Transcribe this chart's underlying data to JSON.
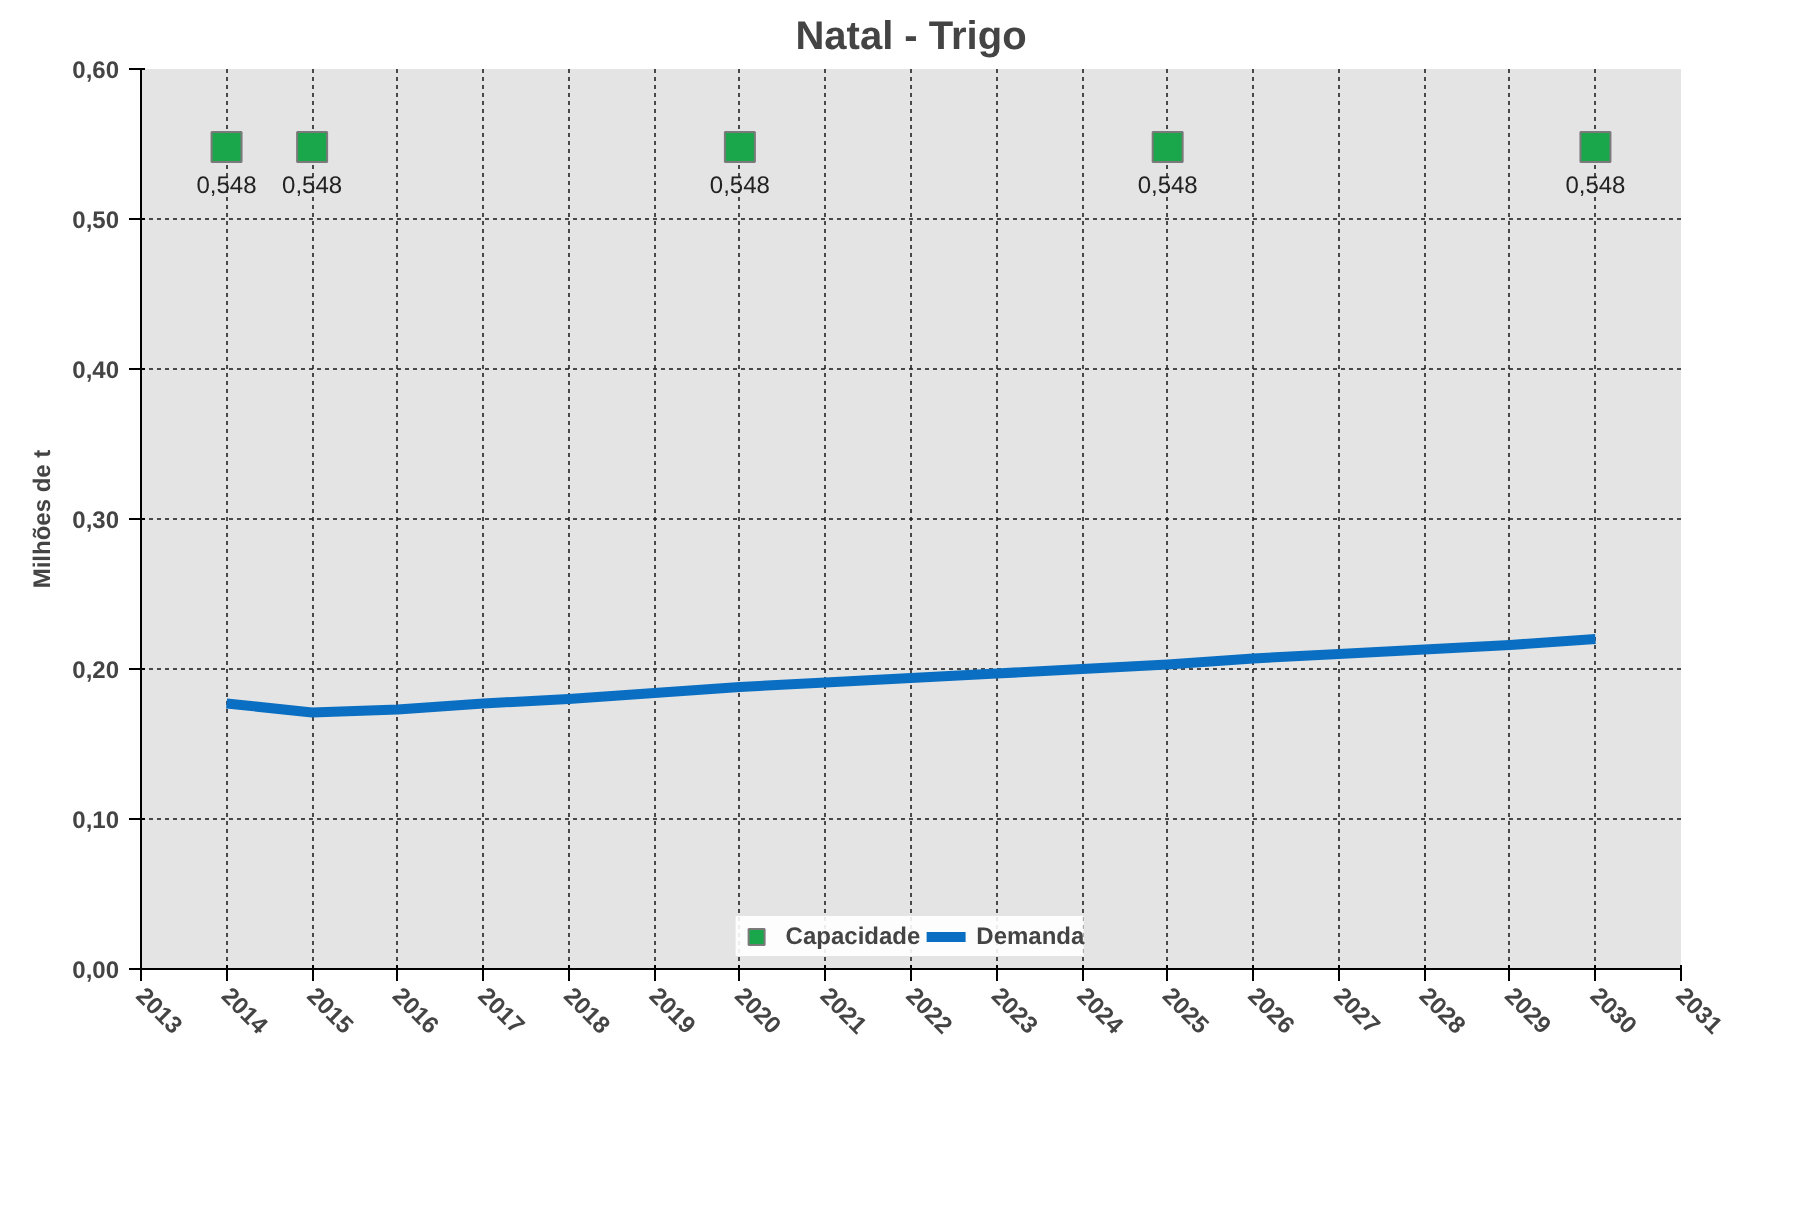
{
  "chart_data": {
    "type": "line",
    "title": "Natal - Trigo",
    "ylabel": "Milhões de t",
    "xlim": [
      2013,
      2031
    ],
    "xticks": [
      2013,
      2014,
      2015,
      2016,
      2017,
      2018,
      2019,
      2020,
      2021,
      2022,
      2023,
      2024,
      2025,
      2026,
      2027,
      2028,
      2029,
      2030,
      2031
    ],
    "ylim": [
      0,
      0.6
    ],
    "yticks": [
      {
        "value": 0,
        "label": "0,00"
      },
      {
        "value": 0.1,
        "label": "0,10"
      },
      {
        "value": 0.2,
        "label": "0,20"
      },
      {
        "value": 0.3,
        "label": "0,30"
      },
      {
        "value": 0.4,
        "label": "0,40"
      },
      {
        "value": 0.5,
        "label": "0,50"
      },
      {
        "value": 0.6,
        "label": "0,60"
      }
    ],
    "grid": true,
    "legend": "bottom",
    "series": [
      {
        "name": "Capacidade",
        "type": "scatter",
        "marker": "square",
        "color": "#1aa64a",
        "x": [
          2014,
          2015,
          2020,
          2025,
          2030
        ],
        "values": [
          0.548,
          0.548,
          0.548,
          0.548,
          0.548
        ],
        "value_labels": [
          "0,548",
          "0,548",
          "0,548",
          "0,548",
          "0,548"
        ]
      },
      {
        "name": "Demanda",
        "color": "#0a6fc2",
        "x": [
          2014,
          2015,
          2016,
          2017,
          2018,
          2019,
          2020,
          2021,
          2022,
          2023,
          2024,
          2025,
          2026,
          2027,
          2028,
          2029,
          2030
        ],
        "values": [
          0.177,
          0.171,
          0.173,
          0.177,
          0.18,
          0.184,
          0.188,
          0.191,
          0.194,
          0.197,
          0.2,
          0.203,
          0.207,
          0.21,
          0.213,
          0.216,
          0.22
        ]
      }
    ]
  }
}
